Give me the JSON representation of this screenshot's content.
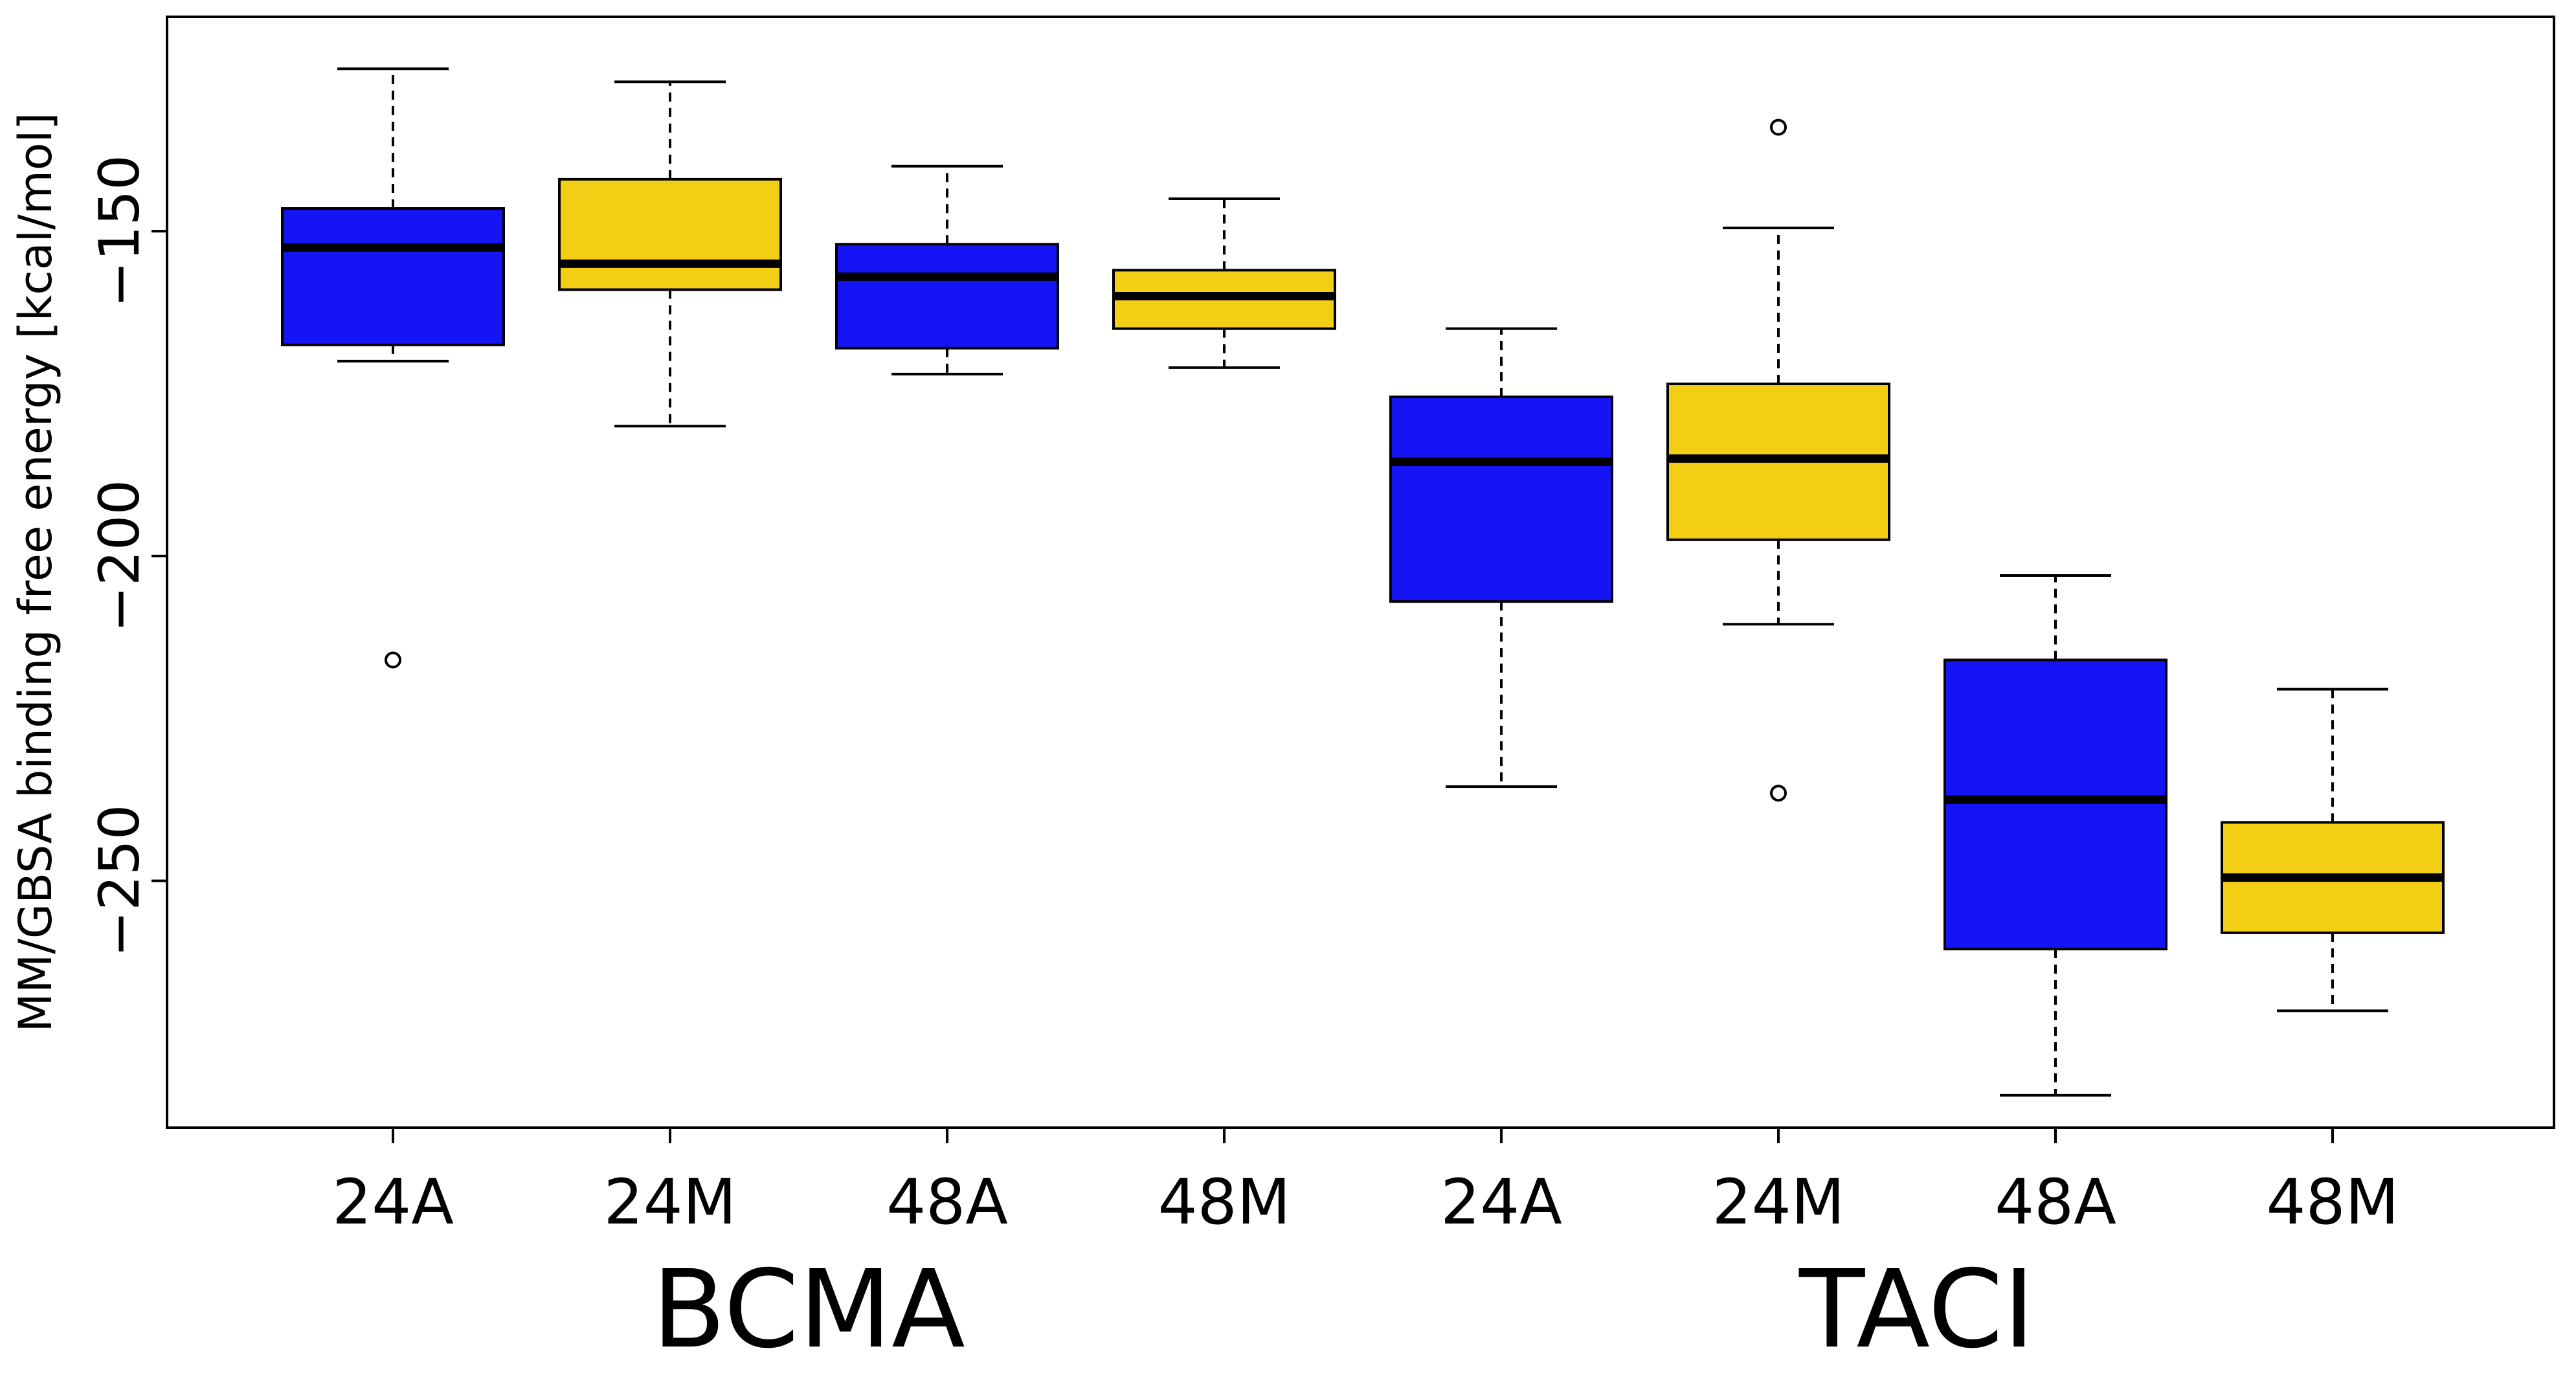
{
  "chart_data": {
    "type": "boxplot",
    "title": "",
    "xlabel": "",
    "ylabel": "MM/GBSA binding free energy [kcal/mol]",
    "ylim": [
      -288,
      -117
    ],
    "y_ticks": [
      -150,
      -200,
      -250
    ],
    "y_tick_labels": [
      "−150",
      "−200",
      "−250"
    ],
    "groups": [
      {
        "name": "BCMA",
        "categories": [
          0,
          1,
          2,
          3
        ]
      },
      {
        "name": "TACI",
        "categories": [
          4,
          5,
          6,
          7
        ]
      }
    ],
    "colors": {
      "A": "#1414f5",
      "M": "#f2ce14",
      "outline": "#000000",
      "median": "#000000"
    },
    "boxes": [
      {
        "label": "24A",
        "group": "BCMA",
        "variant": "A",
        "whisker_low": -170,
        "q1": -167.5,
        "median": -152.5,
        "q3": -146.5,
        "whisker_high": -125,
        "outliers": [
          -216
        ]
      },
      {
        "label": "24M",
        "group": "BCMA",
        "variant": "M",
        "whisker_low": -180,
        "q1": -159,
        "median": -155,
        "q3": -142,
        "whisker_high": -127,
        "outliers": []
      },
      {
        "label": "48A",
        "group": "BCMA",
        "variant": "A",
        "whisker_low": -172,
        "q1": -168,
        "median": -157,
        "q3": -152,
        "whisker_high": -140,
        "outliers": []
      },
      {
        "label": "48M",
        "group": "BCMA",
        "variant": "M",
        "whisker_low": -171,
        "q1": -165,
        "median": -160,
        "q3": -156,
        "whisker_high": -145,
        "outliers": []
      },
      {
        "label": "24A",
        "group": "TACI",
        "variant": "A",
        "whisker_low": -235.5,
        "q1": -207,
        "median": -185.5,
        "q3": -175.5,
        "whisker_high": -165,
        "outliers": []
      },
      {
        "label": "24M",
        "group": "TACI",
        "variant": "M",
        "whisker_low": -210.5,
        "q1": -197.5,
        "median": -185,
        "q3": -173.5,
        "whisker_high": -149.5,
        "outliers": [
          -134,
          -236.5
        ]
      },
      {
        "label": "48A",
        "group": "TACI",
        "variant": "A",
        "whisker_low": -283,
        "q1": -260.5,
        "median": -237.5,
        "q3": -216,
        "whisker_high": -203,
        "outliers": []
      },
      {
        "label": "48M",
        "group": "TACI",
        "variant": "M",
        "whisker_low": -270,
        "q1": -258,
        "median": -249.5,
        "q3": -241,
        "whisker_high": -220.5,
        "outliers": []
      }
    ]
  }
}
